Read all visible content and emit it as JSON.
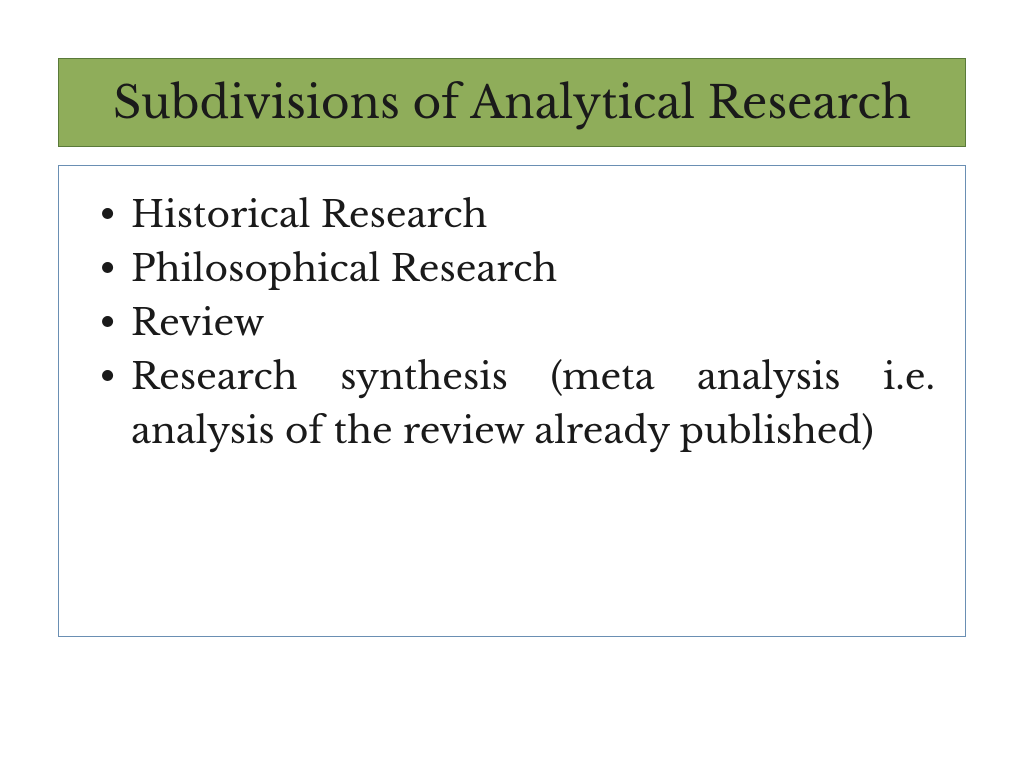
{
  "slide": {
    "title": "Subdivisions of Analytical Research",
    "title_bg_color": "#8fad5a",
    "title_border_color": "#5a7a3a",
    "title_font_color": "#1a1a1a",
    "title_font_size": 44,
    "content_border_color": "#6a8fb3",
    "body_font_size": 36,
    "body_font_color": "#1a1a1a",
    "bullets": [
      "Historical Research",
      "Philosophical Research",
      "Review",
      "Research synthesis (meta analysis i.e. analysis of the review already published)"
    ]
  }
}
